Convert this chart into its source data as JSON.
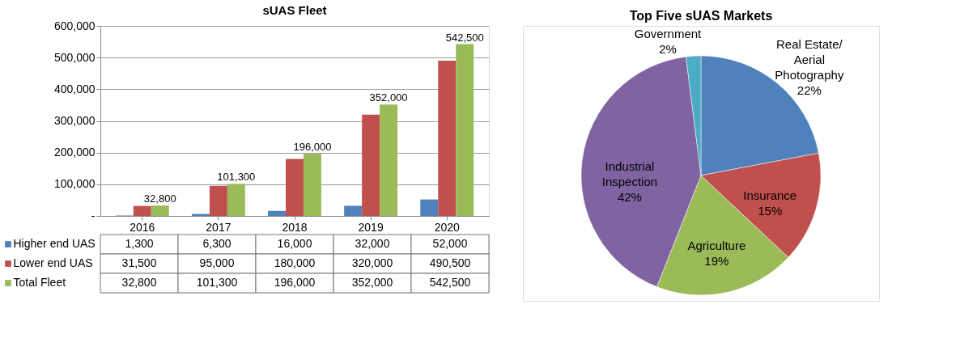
{
  "chart_data": [
    {
      "type": "bar",
      "title": "sUAS Fleet",
      "categories": [
        "2016",
        "2017",
        "2018",
        "2019",
        "2020"
      ],
      "series": [
        {
          "name": "Higher end UAS",
          "color": "#4f81bd",
          "values": [
            1300,
            6300,
            16000,
            32000,
            52000
          ],
          "value_labels": [
            "1,300",
            "6,300",
            "16,000",
            "32,000",
            "52,000"
          ]
        },
        {
          "name": "Lower end UAS",
          "color": "#c0504d",
          "values": [
            31500,
            95000,
            180000,
            320000,
            490500
          ],
          "value_labels": [
            "31,500",
            "95,000",
            "180,000",
            "320,000",
            "490,500"
          ]
        },
        {
          "name": "Total Fleet",
          "color": "#9bbb59",
          "values": [
            32800,
            101300,
            196000,
            352000,
            542500
          ],
          "value_labels": [
            "32,800",
            "101,300",
            "196,000",
            "352,000",
            "542,500"
          ]
        }
      ],
      "ylim": [
        0,
        600000
      ],
      "yticks": [
        {
          "value": 0,
          "label": "-"
        },
        {
          "value": 100000,
          "label": "100,000"
        },
        {
          "value": 200000,
          "label": "200,000"
        },
        {
          "value": 300000,
          "label": "300,000"
        },
        {
          "value": 400000,
          "label": "400,000"
        },
        {
          "value": 500000,
          "label": "500,000"
        },
        {
          "value": 600000,
          "label": "600,000"
        }
      ],
      "grid": "y",
      "legend": "bottom"
    },
    {
      "type": "pie",
      "title": "Top Five sUAS Markets",
      "categories": [
        "Real Estate/\nAerial\nPhotography",
        "Insurance",
        "Agriculture",
        "Industrial\nInspection",
        "Government"
      ],
      "values": [
        22,
        15,
        19,
        42,
        2
      ],
      "colors": [
        "#4f81bd",
        "#c0504d",
        "#9bbb59",
        "#8064a2",
        "#4bacc6"
      ],
      "value_labels": [
        "22%",
        "15%",
        "19%",
        "42%",
        "2%"
      ]
    }
  ]
}
